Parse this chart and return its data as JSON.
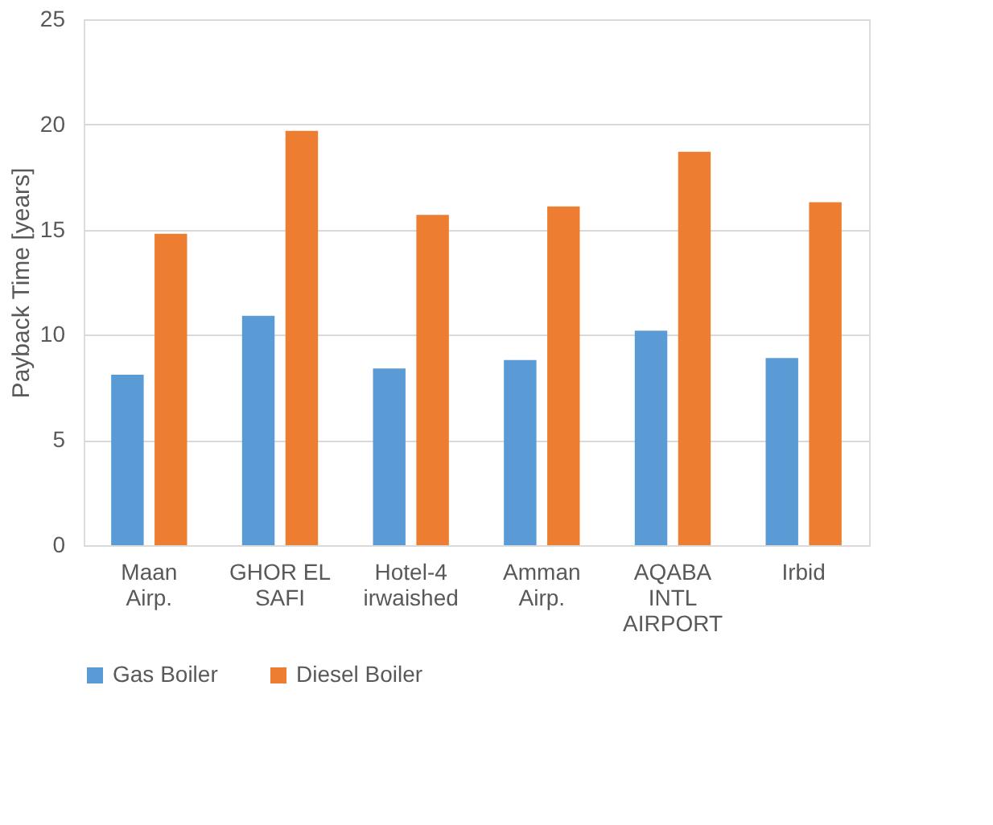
{
  "chart_data": {
    "type": "bar",
    "ylabel": "Payback Time [years]",
    "categories": [
      "Maan Airp.",
      "GHOR EL SAFI",
      "Hotel-4 irwaished",
      "Amman Airp.",
      "AQABA INTL AIRPORT",
      "Irbid"
    ],
    "series": [
      {
        "name": "Gas Boiler",
        "color": "#5b9bd5",
        "values": [
          8.1,
          10.9,
          8.4,
          8.8,
          10.2,
          8.9
        ]
      },
      {
        "name": "Diesel Boiler",
        "color": "#ed7d31",
        "values": [
          14.8,
          19.7,
          15.7,
          16.1,
          18.7,
          16.3
        ]
      }
    ],
    "ylim": [
      0,
      25
    ],
    "yticks": [
      0,
      5,
      10,
      15,
      20,
      25
    ],
    "grid": "y",
    "legend": "bottom"
  }
}
